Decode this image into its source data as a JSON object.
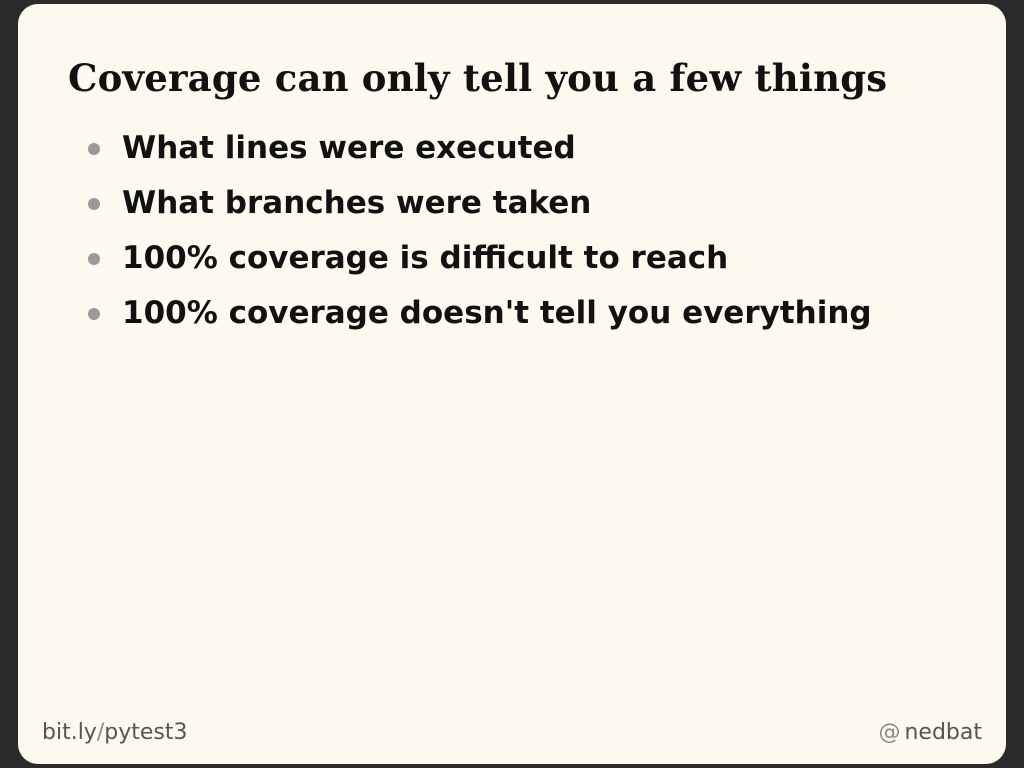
{
  "slide": {
    "title": "Coverage can only tell you a few things",
    "bullets": [
      "What lines were executed",
      "What branches were taken",
      "100% coverage is difficult to reach",
      "100% coverage doesn't tell you everything"
    ],
    "footer": {
      "link_domain": "bit.ly",
      "link_separator": "/",
      "link_path": "pytest3",
      "handle_symbol": "@",
      "handle_name": "nedbat"
    }
  },
  "colors": {
    "background": "#2b2b2b",
    "slide_background": "#fdf9ef",
    "text": "#111111",
    "bullet": "#9a9a9a",
    "footer_text": "#555555"
  }
}
